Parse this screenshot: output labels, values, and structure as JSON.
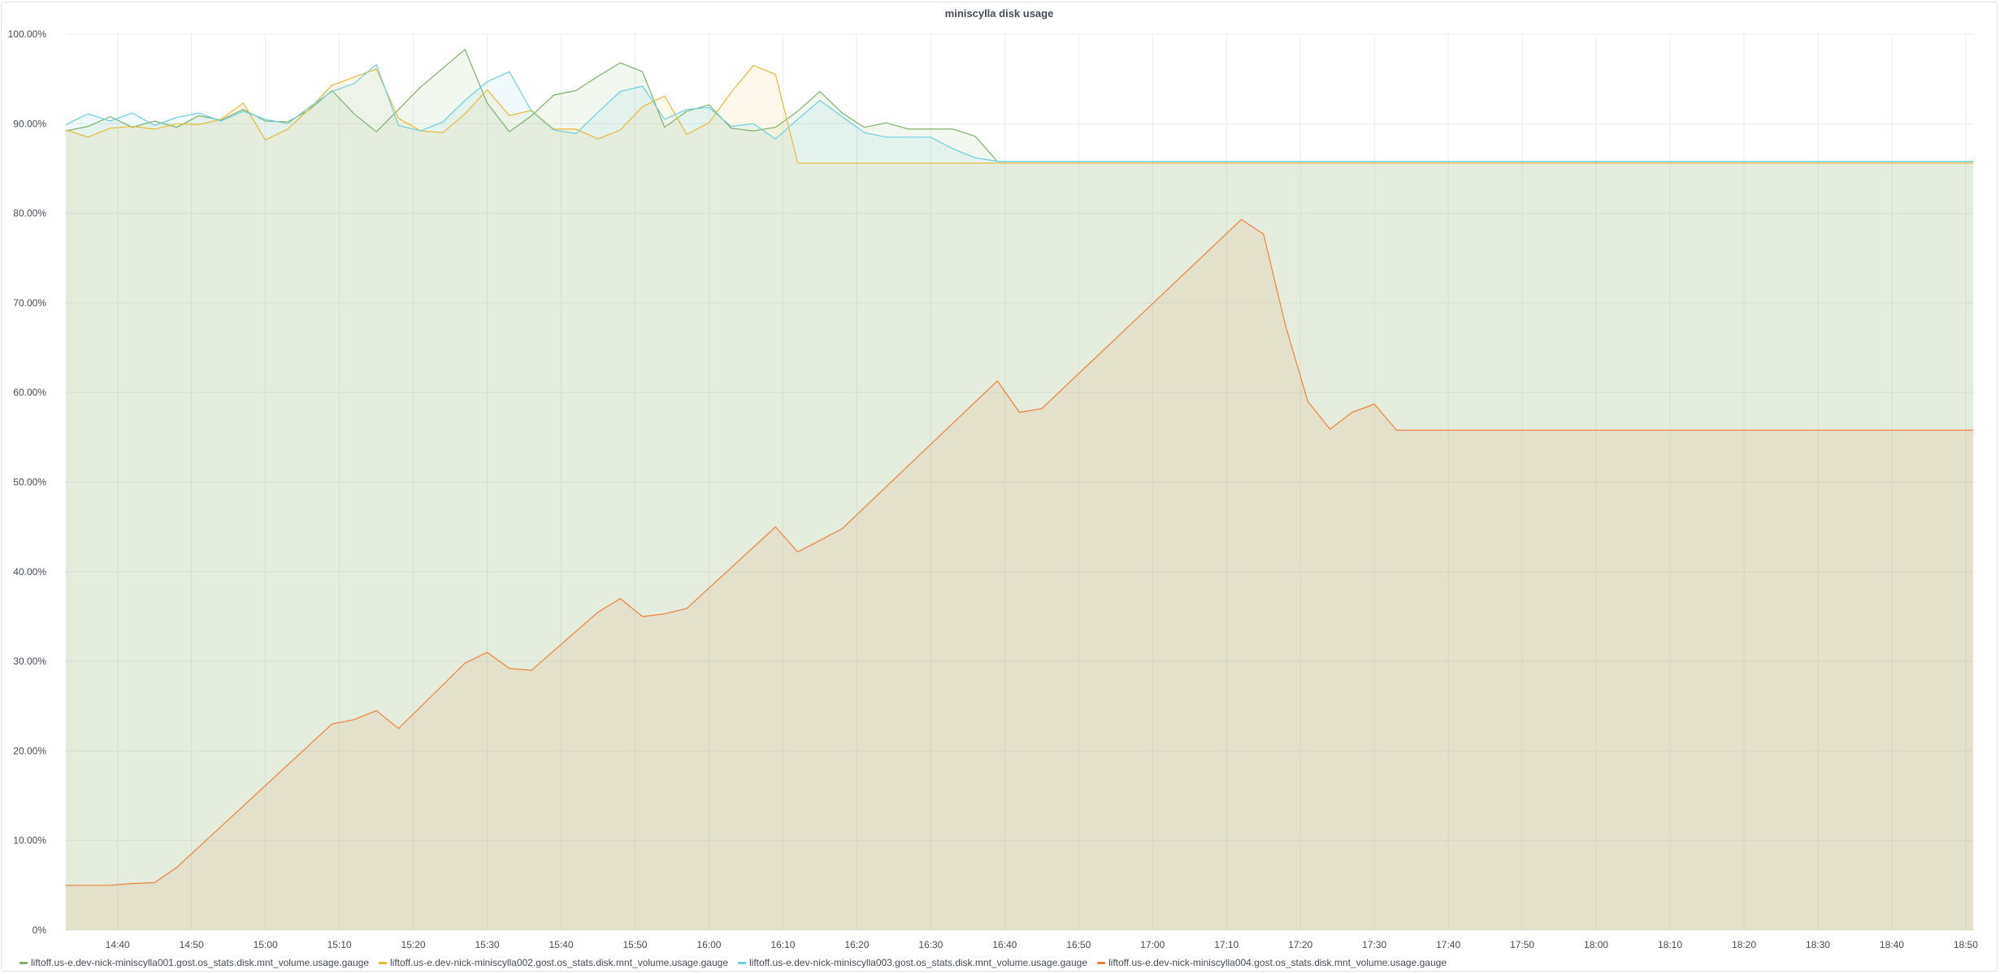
{
  "chart_data": {
    "type": "area",
    "title": "miniscylla disk usage",
    "xlabel": "",
    "ylabel": "",
    "ylim": [
      0,
      100
    ],
    "yticks": [
      "0%",
      "10.00%",
      "20.00%",
      "30.00%",
      "40.00%",
      "50.00%",
      "60.00%",
      "70.00%",
      "80.00%",
      "90.00%",
      "100.00%"
    ],
    "xlim": [
      "14:33",
      "18:51"
    ],
    "xticks": [
      "14:40",
      "14:50",
      "15:00",
      "15:10",
      "15:20",
      "15:30",
      "15:40",
      "15:50",
      "16:00",
      "16:10",
      "16:20",
      "16:30",
      "16:40",
      "16:50",
      "17:00",
      "17:10",
      "17:20",
      "17:30",
      "17:40",
      "17:50",
      "18:00",
      "18:10",
      "18:20",
      "18:30",
      "18:40",
      "18:50"
    ],
    "grid": true,
    "legend_position": "bottom-left",
    "series": [
      {
        "name": "liftoff.us-e.dev-nick-miniscylla001.gost.os_stats.disk.mnt_volume.usage.gauge",
        "color": "#7eb26d",
        "x": [
          "14:33",
          "14:36",
          "14:39",
          "14:42",
          "14:45",
          "14:48",
          "14:51",
          "14:54",
          "14:57",
          "15:00",
          "15:03",
          "15:06",
          "15:09",
          "15:12",
          "15:15",
          "15:18",
          "15:21",
          "15:24",
          "15:27",
          "15:30",
          "15:33",
          "15:36",
          "15:39",
          "15:42",
          "15:45",
          "15:48",
          "15:51",
          "15:54",
          "15:57",
          "16:00",
          "16:03",
          "16:06",
          "16:09",
          "16:12",
          "16:15",
          "16:18",
          "16:21",
          "16:24",
          "16:27",
          "16:30",
          "16:33",
          "16:36",
          "16:39",
          "16:42",
          "18:51"
        ],
        "values": [
          89.2,
          89.7,
          90.8,
          89.6,
          90.3,
          89.6,
          90.9,
          90.4,
          91.6,
          90.3,
          90.2,
          91.6,
          93.7,
          91.1,
          89.1,
          91.6,
          94.1,
          96.2,
          98.3,
          92.3,
          89.1,
          90.9,
          93.2,
          93.7,
          95.3,
          96.8,
          95.8,
          89.6,
          91.4,
          92.1,
          89.5,
          89.2,
          89.6,
          91.4,
          93.6,
          91.2,
          89.6,
          90.1,
          89.4,
          89.4,
          89.4,
          88.6,
          85.8,
          85.8,
          85.8
        ]
      },
      {
        "name": "liftoff.us-e.dev-nick-miniscylla002.gost.os_stats.disk.mnt_volume.usage.gauge",
        "color": "#eab839",
        "x": [
          "14:33",
          "14:36",
          "14:39",
          "14:42",
          "14:45",
          "14:48",
          "14:51",
          "14:54",
          "14:57",
          "15:00",
          "15:03",
          "15:06",
          "15:09",
          "15:12",
          "15:15",
          "15:18",
          "15:21",
          "15:24",
          "15:27",
          "15:30",
          "15:33",
          "15:36",
          "15:39",
          "15:42",
          "15:45",
          "15:48",
          "15:51",
          "15:54",
          "15:57",
          "16:00",
          "16:03",
          "16:06",
          "16:09",
          "16:12",
          "16:15",
          "18:51"
        ],
        "values": [
          89.3,
          88.5,
          89.5,
          89.7,
          89.4,
          90.0,
          89.9,
          90.5,
          92.3,
          88.2,
          89.4,
          91.7,
          94.3,
          95.2,
          96.1,
          90.6,
          89.2,
          89.0,
          91.1,
          93.8,
          90.9,
          91.5,
          89.4,
          89.4,
          88.3,
          89.3,
          91.9,
          93.1,
          88.8,
          90.1,
          93.5,
          96.5,
          95.5,
          85.6,
          85.6,
          85.6
        ]
      },
      {
        "name": "liftoff.us-e.dev-nick-miniscylla003.gost.os_stats.disk.mnt_volume.usage.gauge",
        "color": "#6ed0e0",
        "x": [
          "14:33",
          "14:36",
          "14:39",
          "14:42",
          "14:45",
          "14:48",
          "14:51",
          "14:54",
          "14:57",
          "15:00",
          "15:03",
          "15:06",
          "15:09",
          "15:12",
          "15:15",
          "15:18",
          "15:21",
          "15:24",
          "15:27",
          "15:30",
          "15:33",
          "15:36",
          "15:39",
          "15:42",
          "15:45",
          "15:48",
          "15:51",
          "15:54",
          "15:57",
          "16:00",
          "16:03",
          "16:06",
          "16:09",
          "16:12",
          "16:15",
          "16:18",
          "16:21",
          "16:24",
          "16:27",
          "16:30",
          "16:33",
          "16:36",
          "16:39",
          "18:51"
        ],
        "values": [
          89.9,
          91.1,
          90.3,
          91.2,
          89.8,
          90.7,
          91.2,
          90.3,
          91.4,
          90.5,
          90.0,
          91.9,
          93.6,
          94.5,
          96.6,
          89.8,
          89.2,
          90.2,
          92.6,
          94.7,
          95.8,
          91.4,
          89.3,
          88.9,
          91.3,
          93.6,
          94.2,
          90.5,
          91.6,
          91.8,
          89.7,
          90.0,
          88.3,
          90.5,
          92.6,
          90.8,
          89.0,
          88.5,
          88.5,
          88.5,
          87.2,
          86.2,
          85.8,
          85.8
        ]
      },
      {
        "name": "liftoff.us-e.dev-nick-miniscylla004.gost.os_stats.disk.mnt_volume.usage.gauge",
        "color": "#ef843c",
        "x": [
          "14:33",
          "14:36",
          "14:39",
          "14:42",
          "14:45",
          "14:48",
          "15:09",
          "15:12",
          "15:15",
          "15:18",
          "15:27",
          "15:30",
          "15:33",
          "15:36",
          "15:45",
          "15:48",
          "15:51",
          "15:54",
          "15:57",
          "16:09",
          "16:12",
          "16:18",
          "16:39",
          "16:42",
          "16:45",
          "17:12",
          "17:15",
          "17:18",
          "17:21",
          "17:24",
          "17:27",
          "17:30",
          "17:33",
          "18:51"
        ],
        "values": [
          5.0,
          5.0,
          5.0,
          5.2,
          5.3,
          7.0,
          23.0,
          23.5,
          24.5,
          22.5,
          29.8,
          31.0,
          29.2,
          29.0,
          35.5,
          37.0,
          35.0,
          35.3,
          35.9,
          45.0,
          42.2,
          44.8,
          61.3,
          57.8,
          58.2,
          79.3,
          77.7,
          67.4,
          59.0,
          55.9,
          57.8,
          58.7,
          55.8,
          55.8
        ]
      }
    ]
  }
}
